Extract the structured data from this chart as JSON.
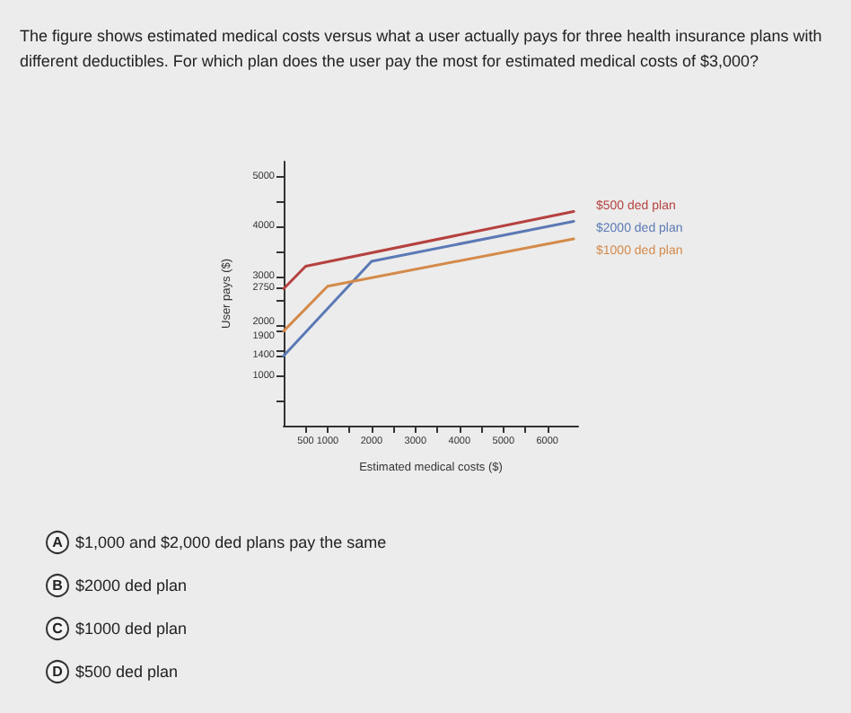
{
  "chart_data": {
    "type": "line",
    "title": "The figure shows estimated medical costs versus what a user actually pays for three health insurance plans with different deductibles. For which plan does the user pay the most for estimated medical costs of $3,000?",
    "xlabel": "Estimated medical costs ($)",
    "ylabel": "User pays ($)",
    "series": [
      {
        "name": "$500 ded plan",
        "color": "#b5413f",
        "x": [
          0,
          500,
          6600
        ],
        "values": [
          2750,
          3200,
          4300
        ]
      },
      {
        "name": "$2000 ded plan",
        "color": "#5b79b5",
        "x": [
          0,
          2000,
          6600
        ],
        "values": [
          1400,
          3300,
          4100
        ]
      },
      {
        "name": "$1000 ded plan",
        "color": "#d48a4a",
        "x": [
          0,
          1000,
          6600
        ],
        "values": [
          1900,
          2800,
          3750
        ]
      }
    ],
    "xlim": [
      0,
      6700
    ],
    "ylim": [
      0,
      5300
    ],
    "xticks": [
      500,
      1000,
      {
        "value": 1500,
        "label": null
      },
      2000,
      {
        "value": 2500,
        "label": null
      },
      3000,
      {
        "value": 3500,
        "label": null
      },
      4000,
      {
        "value": 4500,
        "label": null
      },
      5000,
      {
        "value": 5500,
        "label": null
      },
      6000
    ],
    "yticks": [
      {
        "value": 500,
        "label": null
      },
      1000,
      1400,
      {
        "value": 1500,
        "label": null
      },
      1900,
      2000,
      {
        "value": 2500,
        "label": null
      },
      2750,
      3000,
      {
        "value": 3500,
        "label": null
      },
      4000,
      {
        "value": 4500,
        "label": null
      },
      5000
    ],
    "annotations": [
      "A",
      "$1,000 and $2,000 ded plans pay the same",
      "B",
      "$2000 ded plan",
      "C",
      "$1000 ded plan",
      "D",
      "$500 ded plan"
    ],
    "legend": "top right",
    "marker": "none",
    "line_style": "solid",
    "grid": false
  }
}
